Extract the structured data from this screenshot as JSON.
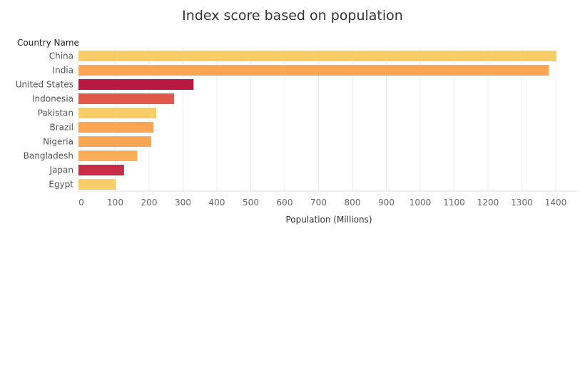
{
  "chart_data": {
    "type": "bar",
    "orientation": "horizontal",
    "title": "Index score based on population",
    "dimension_label": "Country Name",
    "xlabel": "Population (Millions)",
    "ylabel": "",
    "xlim": [
      0,
      1400
    ],
    "tick_step": 100,
    "grid": true,
    "legend": "none",
    "categories": [
      "China",
      "India",
      "United States",
      "Indonesia",
      "Pakistan",
      "Brazil",
      "Nigeria",
      "Bangladesh",
      "Japan",
      "Egypt"
    ],
    "values": [
      1402,
      1380,
      331,
      274,
      221,
      213,
      206,
      165,
      126,
      102
    ],
    "colors": [
      "#f6cd67",
      "#fca552",
      "#b8193f",
      "#e05849",
      "#f6cd67",
      "#fca552",
      "#fca552",
      "#fcac56",
      "#c72b46",
      "#f6cd67"
    ]
  }
}
